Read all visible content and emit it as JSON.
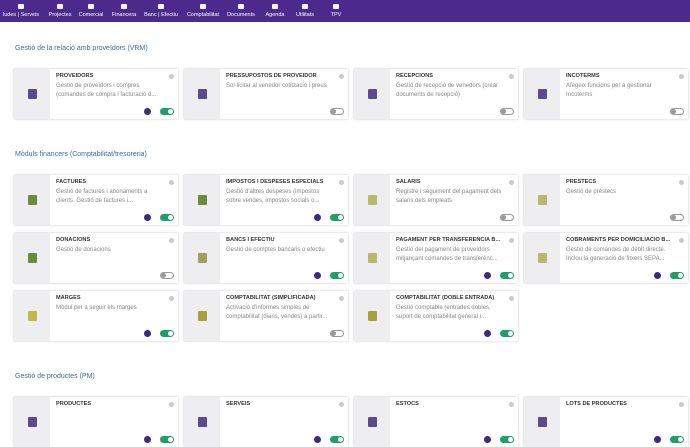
{
  "menu": {
    "items": [
      {
        "label": "ludes | Serveis"
      },
      {
        "label": "Projectes"
      },
      {
        "label": "Comercial"
      },
      {
        "label": "Financera"
      },
      {
        "label": "Banc | Efectiu"
      },
      {
        "label": "Comptabilitat"
      },
      {
        "label": "Documents"
      },
      {
        "label": "Agenda"
      },
      {
        "label": "Utilitats"
      },
      {
        "label": "TPV"
      }
    ]
  },
  "sections": [
    {
      "title": "Gestió de la relació amb proveïdors (VRM)",
      "cards": [
        {
          "title": "PROVEÏDORS",
          "description": "Gestió de proveïdors i compres (comandes de compra i facturació d...",
          "enabled": true,
          "color": "#5b4a8e"
        },
        {
          "title": "PRESSUPOSTOS DE PROVEÏDOR",
          "description": "Sol·licitar al venedor cotització i preus",
          "enabled": false,
          "color": "#5b4a8e"
        },
        {
          "title": "RECEPCIONS",
          "description": "Gestió de recepció de venedors (crear documents de recepció)",
          "enabled": false,
          "color": "#5b4a8e"
        },
        {
          "title": "INCOTERMS",
          "description": "Afegeix funcions per a gestionar Incoterms",
          "enabled": false,
          "color": "#5b4a8e"
        }
      ]
    },
    {
      "title": "Mòduls financers (Comptabilitat/tresoreria)",
      "cards": [
        {
          "title": "FACTURES",
          "description": "Gestió de factures i abonaments a clients. Gestió de factures i...",
          "enabled": true,
          "color": "#6b8c3a"
        },
        {
          "title": "IMPOSTOS I DESPESES ESPECIALS",
          "description": "Gestió d'altres despeses (impostos sobre vendes, impostos socials o...",
          "enabled": true,
          "color": "#6b8c3a"
        },
        {
          "title": "SALARIS",
          "description": "Registre i seguiment del pagament dels salaris dels empleats",
          "enabled": false,
          "color": "#b8b86a"
        },
        {
          "title": "PRÉSTECS",
          "description": "Gestió de préstecs",
          "enabled": false,
          "color": "#b8b86a"
        },
        {
          "title": "DONACIONS",
          "description": "Gestió de donacions",
          "enabled": false,
          "color": "#6b8c3a"
        },
        {
          "title": "BANCS I EFECTIU",
          "description": "Gestió de comptes bancaris o efectiu",
          "enabled": true,
          "color": "#a0a060"
        },
        {
          "title": "PAGAMENT PER TRANSFERÈNCIA B...",
          "description": "Gestió del pagament de proveïdors mitjançant comandes de transferènc...",
          "enabled": true,
          "color": "#b8b86a"
        },
        {
          "title": "COBRAMENTS PER DOMICILIACIÓ B...",
          "description": "Gestió de comandes de dèbit directe. Inclou la generació de fitxers SEPA...",
          "enabled": true,
          "color": "#b8b86a"
        },
        {
          "title": "MARGES",
          "description": "Mòdul per a seguir els marges",
          "enabled": true,
          "color": "#c7b44a"
        },
        {
          "title": "COMPTABILITAT (SIMPLIFICADA)",
          "description": "Activació d'informes simples de comptabilitat (diaris, vendes) a partir...",
          "enabled": false,
          "color": "#a8a040"
        },
        {
          "title": "COMPTABILITAT (DOBLE ENTRADA)",
          "description": "Gestió comptable (entrades dobles, suport de comptabilitat general i...",
          "enabled": true,
          "color": "#a8a040"
        }
      ]
    },
    {
      "title": "Gestió de productes (PM)",
      "cards": [
        {
          "title": "PRODUCTES",
          "description": "",
          "enabled": true,
          "color": "#5b4a8e"
        },
        {
          "title": "SERVEIS",
          "description": "",
          "enabled": true,
          "color": "#5b4a8e"
        },
        {
          "title": "ESTOCS",
          "description": "",
          "enabled": true,
          "color": "#5b4a8e"
        },
        {
          "title": "LOTS DE PRODUCTES",
          "description": "",
          "enabled": true,
          "color": "#5b4a8e"
        }
      ]
    }
  ]
}
